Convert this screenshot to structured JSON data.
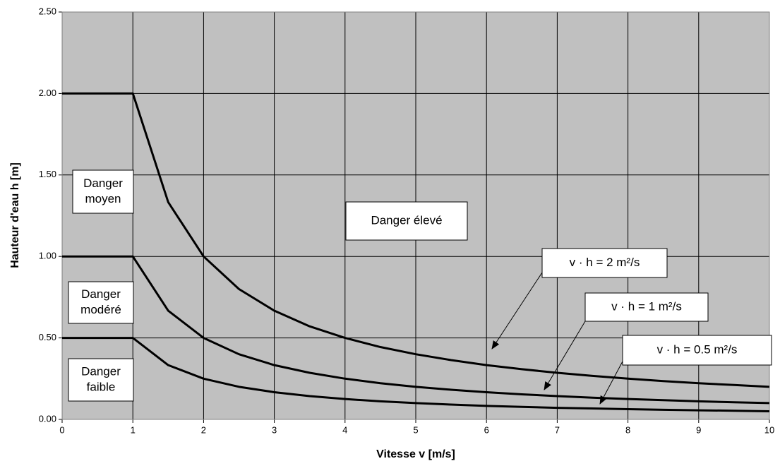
{
  "chart_data": {
    "type": "line",
    "xlabel": "Vitesse  v  [m/s]",
    "ylabel": "Hauteur d'eau  h  [m]",
    "x": [
      0,
      1,
      1.5,
      2,
      2.5,
      3,
      3.5,
      4,
      4.5,
      5,
      5.5,
      6,
      6.5,
      7,
      7.5,
      8,
      8.5,
      9,
      9.5,
      10
    ],
    "series": [
      {
        "color": "#000000",
        "values": [
          2,
          2,
          1.333,
          1,
          0.8,
          0.667,
          0.571,
          0.5,
          0.444,
          0.4,
          0.364,
          0.333,
          0.308,
          0.286,
          0.267,
          0.25,
          0.235,
          0.222,
          0.211,
          0.2
        ]
      },
      {
        "color": "#000000",
        "values": [
          1,
          1,
          0.667,
          0.5,
          0.4,
          0.333,
          0.286,
          0.25,
          0.222,
          0.2,
          0.182,
          0.167,
          0.154,
          0.143,
          0.133,
          0.125,
          0.118,
          0.111,
          0.105,
          0.1
        ]
      },
      {
        "color": "#000000",
        "values": [
          0.5,
          0.5,
          0.333,
          0.25,
          0.2,
          0.167,
          0.143,
          0.125,
          0.111,
          0.1,
          0.091,
          0.083,
          0.077,
          0.071,
          0.067,
          0.063,
          0.059,
          0.056,
          0.053,
          0.05
        ]
      }
    ],
    "xlim": [
      0,
      10
    ],
    "xticks": [
      0,
      1,
      2,
      3,
      4,
      5,
      6,
      7,
      8,
      9,
      10
    ],
    "ylim": [
      0,
      2.5
    ],
    "yticks": [
      {
        "value": 0,
        "label": "0.00"
      },
      {
        "value": 0.5,
        "label": "0.50"
      },
      {
        "value": 1,
        "label": "1.00"
      },
      {
        "value": 1.5,
        "label": "1.50"
      },
      {
        "value": 2,
        "label": "2.00"
      },
      {
        "value": 2.5,
        "label": "2.50"
      }
    ],
    "grid": true,
    "annotations": [
      {
        "lines": [
          "Danger",
          "moyen"
        ]
      },
      {
        "lines": [
          "Danger",
          "modéré"
        ]
      },
      {
        "lines": [
          "Danger",
          "faible"
        ]
      },
      {
        "lines": [
          "Danger élevé"
        ]
      },
      {
        "lines": [
          "v · h = 2 m²/s"
        ]
      },
      {
        "lines": [
          "v · h = 1 m²/s"
        ]
      },
      {
        "lines": [
          "v · h = 0.5 m²/s"
        ]
      }
    ]
  }
}
